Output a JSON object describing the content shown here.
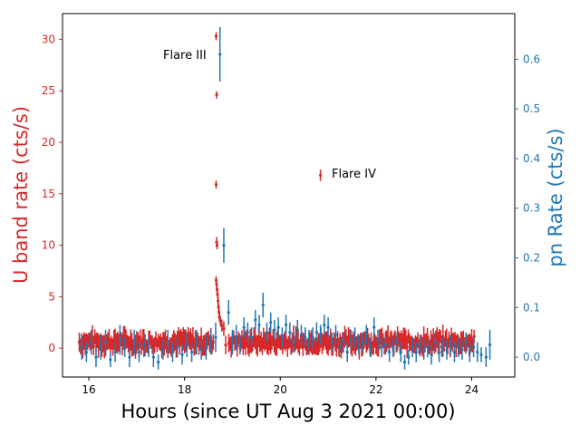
{
  "chart_data": {
    "type": "scatter",
    "xlabel": "Hours (since UT Aug 3 2021 00:00)",
    "xlim": [
      15.45,
      24.9
    ],
    "xticks": [
      16,
      18,
      20,
      22,
      24
    ],
    "left_axis": {
      "label": "U band rate (cts/s)",
      "color": "#d62728",
      "ylim": [
        -2.8,
        32.5
      ],
      "ticks": [
        0,
        5,
        10,
        15,
        20,
        25,
        30
      ]
    },
    "right_axis": {
      "label": "pn Rate (cts/s)",
      "color": "#1f77b4",
      "ylim": [
        -0.04,
        0.692
      ],
      "ticks": [
        0.0,
        0.1,
        0.2,
        0.3,
        0.4,
        0.5,
        0.6
      ]
    },
    "annotations": [
      {
        "text": "Flare III",
        "x": 17.45,
        "y": 28.2
      },
      {
        "text": "Flare IV",
        "x": 21.0,
        "y": 16.8
      }
    ],
    "series": [
      {
        "axis": "left",
        "color": "#d62728",
        "baseline": {
          "x_start": 15.8,
          "x_end": 24.05,
          "step": 0.025,
          "level": 0.6,
          "scatter": 0.55,
          "err": 0.9
        },
        "points": [
          {
            "x": 18.66,
            "y": 30.3,
            "err": 0.4
          },
          {
            "x": 18.67,
            "y": 24.6,
            "err": 0.35
          },
          {
            "x": 18.66,
            "y": 15.9,
            "err": 0.4
          },
          {
            "x": 18.67,
            "y": 10.3,
            "err": 0.5
          },
          {
            "x": 18.68,
            "y": 10.0,
            "err": 0.4
          },
          {
            "x": 18.66,
            "y": 6.6,
            "err": 0.4
          },
          {
            "x": 18.67,
            "y": 6.2,
            "err": 0.4
          },
          {
            "x": 18.68,
            "y": 5.7,
            "err": 0.4
          },
          {
            "x": 18.69,
            "y": 5.2,
            "err": 0.4
          },
          {
            "x": 18.7,
            "y": 4.6,
            "err": 0.4
          },
          {
            "x": 18.71,
            "y": 4.0,
            "err": 0.4
          },
          {
            "x": 18.72,
            "y": 3.5,
            "err": 0.4
          },
          {
            "x": 18.73,
            "y": 3.0,
            "err": 0.4
          },
          {
            "x": 18.75,
            "y": 2.6,
            "err": 0.5
          },
          {
            "x": 18.78,
            "y": 2.2,
            "err": 0.6
          },
          {
            "x": 18.82,
            "y": 1.9,
            "err": 0.7
          },
          {
            "x": 18.86,
            "y": 0.3,
            "err": 0.9
          },
          {
            "x": 20.84,
            "y": 16.8,
            "err": 0.55
          }
        ]
      },
      {
        "axis": "right",
        "color": "#1f77b4",
        "points": [
          {
            "x": 15.85,
            "y": 0.02,
            "err": 0.025
          },
          {
            "x": 15.95,
            "y": 0.01,
            "err": 0.02
          },
          {
            "x": 16.05,
            "y": 0.03,
            "err": 0.025
          },
          {
            "x": 16.15,
            "y": 0.0,
            "err": 0.02
          },
          {
            "x": 16.25,
            "y": 0.02,
            "err": 0.025
          },
          {
            "x": 16.35,
            "y": 0.03,
            "err": 0.025
          },
          {
            "x": 16.45,
            "y": -0.005,
            "err": 0.015
          },
          {
            "x": 16.55,
            "y": 0.01,
            "err": 0.02
          },
          {
            "x": 16.65,
            "y": 0.035,
            "err": 0.03
          },
          {
            "x": 16.75,
            "y": 0.02,
            "err": 0.02
          },
          {
            "x": 16.85,
            "y": 0.0,
            "err": 0.02
          },
          {
            "x": 16.95,
            "y": 0.03,
            "err": 0.025
          },
          {
            "x": 17.05,
            "y": 0.01,
            "err": 0.02
          },
          {
            "x": 17.15,
            "y": 0.025,
            "err": 0.025
          },
          {
            "x": 17.25,
            "y": 0.02,
            "err": 0.02
          },
          {
            "x": 17.35,
            "y": 0.0,
            "err": 0.02
          },
          {
            "x": 17.45,
            "y": -0.01,
            "err": 0.015
          },
          {
            "x": 17.55,
            "y": 0.015,
            "err": 0.02
          },
          {
            "x": 17.65,
            "y": 0.03,
            "err": 0.025
          },
          {
            "x": 17.75,
            "y": 0.01,
            "err": 0.02
          },
          {
            "x": 17.85,
            "y": 0.02,
            "err": 0.02
          },
          {
            "x": 17.95,
            "y": 0.005,
            "err": 0.02
          },
          {
            "x": 18.05,
            "y": 0.025,
            "err": 0.025
          },
          {
            "x": 18.15,
            "y": 0.01,
            "err": 0.02
          },
          {
            "x": 18.25,
            "y": 0.03,
            "err": 0.025
          },
          {
            "x": 18.35,
            "y": 0.015,
            "err": 0.02
          },
          {
            "x": 18.45,
            "y": 0.02,
            "err": 0.025
          },
          {
            "x": 18.55,
            "y": 0.03,
            "err": 0.025
          },
          {
            "x": 18.65,
            "y": 0.04,
            "err": 0.03
          },
          {
            "x": 18.74,
            "y": 0.61,
            "err": 0.055
          },
          {
            "x": 18.82,
            "y": 0.225,
            "err": 0.035
          },
          {
            "x": 18.92,
            "y": 0.09,
            "err": 0.025
          },
          {
            "x": 19.0,
            "y": 0.03,
            "err": 0.025
          },
          {
            "x": 19.08,
            "y": 0.04,
            "err": 0.025
          },
          {
            "x": 19.16,
            "y": 0.025,
            "err": 0.02
          },
          {
            "x": 19.24,
            "y": 0.06,
            "err": 0.02
          },
          {
            "x": 19.32,
            "y": 0.05,
            "err": 0.02
          },
          {
            "x": 19.4,
            "y": 0.04,
            "err": 0.02
          },
          {
            "x": 19.48,
            "y": 0.075,
            "err": 0.02
          },
          {
            "x": 19.56,
            "y": 0.065,
            "err": 0.02
          },
          {
            "x": 19.64,
            "y": 0.105,
            "err": 0.025
          },
          {
            "x": 19.72,
            "y": 0.05,
            "err": 0.02
          },
          {
            "x": 19.8,
            "y": 0.07,
            "err": 0.02
          },
          {
            "x": 19.88,
            "y": 0.055,
            "err": 0.02
          },
          {
            "x": 19.96,
            "y": 0.06,
            "err": 0.02
          },
          {
            "x": 20.04,
            "y": 0.04,
            "err": 0.02
          },
          {
            "x": 20.12,
            "y": 0.065,
            "err": 0.02
          },
          {
            "x": 20.2,
            "y": 0.05,
            "err": 0.02
          },
          {
            "x": 20.28,
            "y": 0.03,
            "err": 0.02
          },
          {
            "x": 20.36,
            "y": 0.055,
            "err": 0.02
          },
          {
            "x": 20.44,
            "y": 0.045,
            "err": 0.02
          },
          {
            "x": 20.52,
            "y": 0.04,
            "err": 0.02
          },
          {
            "x": 20.6,
            "y": 0.035,
            "err": 0.02
          },
          {
            "x": 20.68,
            "y": 0.04,
            "err": 0.02
          },
          {
            "x": 20.76,
            "y": 0.05,
            "err": 0.02
          },
          {
            "x": 20.84,
            "y": 0.045,
            "err": 0.02
          },
          {
            "x": 20.92,
            "y": 0.065,
            "err": 0.02
          },
          {
            "x": 21.0,
            "y": 0.06,
            "err": 0.02
          },
          {
            "x": 21.08,
            "y": 0.03,
            "err": 0.02
          },
          {
            "x": 21.16,
            "y": 0.045,
            "err": 0.02
          },
          {
            "x": 21.24,
            "y": 0.02,
            "err": 0.02
          },
          {
            "x": 21.32,
            "y": 0.03,
            "err": 0.02
          },
          {
            "x": 21.4,
            "y": 0.01,
            "err": 0.02
          },
          {
            "x": 21.48,
            "y": 0.035,
            "err": 0.02
          },
          {
            "x": 21.56,
            "y": 0.04,
            "err": 0.02
          },
          {
            "x": 21.64,
            "y": 0.025,
            "err": 0.02
          },
          {
            "x": 21.72,
            "y": 0.03,
            "err": 0.02
          },
          {
            "x": 21.8,
            "y": 0.045,
            "err": 0.02
          },
          {
            "x": 21.88,
            "y": 0.02,
            "err": 0.02
          },
          {
            "x": 21.96,
            "y": 0.06,
            "err": 0.02
          },
          {
            "x": 22.04,
            "y": 0.035,
            "err": 0.02
          },
          {
            "x": 22.12,
            "y": 0.02,
            "err": 0.02
          },
          {
            "x": 22.2,
            "y": 0.025,
            "err": 0.02
          },
          {
            "x": 22.28,
            "y": 0.01,
            "err": 0.02
          },
          {
            "x": 22.36,
            "y": 0.02,
            "err": 0.02
          },
          {
            "x": 22.44,
            "y": 0.03,
            "err": 0.02
          },
          {
            "x": 22.52,
            "y": 0.01,
            "err": 0.02
          },
          {
            "x": 22.6,
            "y": -0.01,
            "err": 0.015
          },
          {
            "x": 22.68,
            "y": 0.0,
            "err": 0.015
          },
          {
            "x": 22.76,
            "y": 0.02,
            "err": 0.02
          },
          {
            "x": 22.84,
            "y": 0.01,
            "err": 0.02
          },
          {
            "x": 22.92,
            "y": 0.025,
            "err": 0.02
          },
          {
            "x": 23.0,
            "y": 0.015,
            "err": 0.02
          },
          {
            "x": 23.08,
            "y": 0.02,
            "err": 0.02
          },
          {
            "x": 23.16,
            "y": 0.005,
            "err": 0.02
          },
          {
            "x": 23.24,
            "y": 0.03,
            "err": 0.02
          },
          {
            "x": 23.32,
            "y": 0.01,
            "err": 0.02
          },
          {
            "x": 23.4,
            "y": 0.02,
            "err": 0.02
          },
          {
            "x": 23.48,
            "y": 0.015,
            "err": 0.02
          },
          {
            "x": 23.56,
            "y": 0.025,
            "err": 0.02
          },
          {
            "x": 23.64,
            "y": 0.01,
            "err": 0.02
          },
          {
            "x": 23.72,
            "y": 0.02,
            "err": 0.02
          },
          {
            "x": 23.8,
            "y": 0.015,
            "err": 0.02
          },
          {
            "x": 23.88,
            "y": 0.03,
            "err": 0.02
          },
          {
            "x": 23.96,
            "y": 0.01,
            "err": 0.02
          },
          {
            "x": 24.04,
            "y": 0.02,
            "err": 0.02
          },
          {
            "x": 24.12,
            "y": 0.01,
            "err": 0.02
          },
          {
            "x": 24.2,
            "y": 0.005,
            "err": 0.015
          },
          {
            "x": 24.3,
            "y": 0.0,
            "err": 0.02
          },
          {
            "x": 24.38,
            "y": 0.025,
            "err": 0.03
          }
        ]
      }
    ]
  }
}
